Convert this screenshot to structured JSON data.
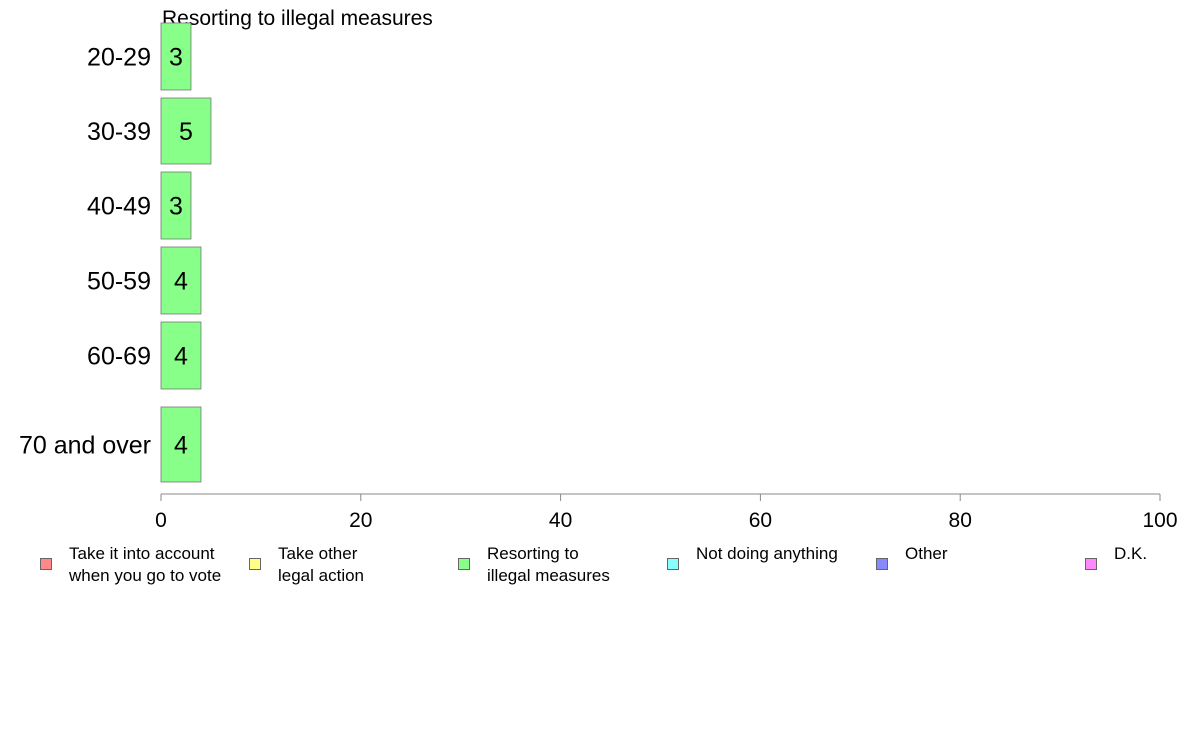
{
  "chart_data": {
    "type": "bar",
    "orientation": "horizontal",
    "title": "Resorting to illegal measures",
    "categories": [
      "20-29",
      "30-39",
      "40-49",
      "50-59",
      "60-69",
      "70 and over"
    ],
    "values": [
      3,
      5,
      3,
      4,
      4,
      4
    ],
    "bar_color": "#88ff88",
    "xlim": [
      0,
      100
    ],
    "x_ticks": [
      "0",
      "20",
      "40",
      "60",
      "80",
      "100"
    ],
    "grid": false,
    "legend_position": "bottom"
  },
  "legend": [
    {
      "label": "Take it into account\nwhen you go to vote",
      "color": "#ff8888"
    },
    {
      "label": "Take other\nlegal action",
      "color": "#ffff88"
    },
    {
      "label": "Resorting to\nillegal measures",
      "color": "#88ff88"
    },
    {
      "label": "Not doing anything",
      "color": "#88ffff"
    },
    {
      "label": "Other",
      "color": "#8888ff"
    },
    {
      "label": "D.K.",
      "color": "#ff88ff"
    }
  ]
}
